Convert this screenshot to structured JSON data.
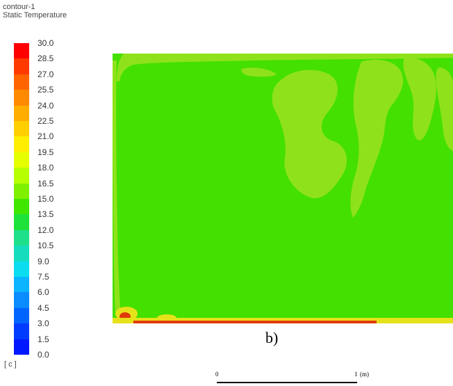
{
  "header": {
    "contour_name": "contour-1",
    "variable": "Static Temperature"
  },
  "legend": {
    "labels": [
      "30.0",
      "28.5",
      "27.0",
      "25.5",
      "24.0",
      "22.5",
      "21.0",
      "19.5",
      "18.0",
      "16.5",
      "15.0",
      "13.5",
      "12.0",
      "10.5",
      "9.0",
      "7.5",
      "6.0",
      "4.5",
      "3.0",
      "1.5",
      "0.0"
    ],
    "colors": [
      "#ff0000",
      "#ff3a00",
      "#ff6400",
      "#ff8a00",
      "#ffae00",
      "#ffcf00",
      "#ffee00",
      "#e6ff00",
      "#b6ff00",
      "#7ef000",
      "#3ee600",
      "#1ee23a",
      "#1ee08a",
      "#16dcbe",
      "#0cdcf0",
      "#0cb4ff",
      "#0a8cff",
      "#0064ff",
      "#003cff",
      "#0018ff"
    ],
    "unit": "[ c ]"
  },
  "plot": {
    "panel_label": "b)",
    "field_color": "#44e000",
    "lighter_color": "#8fe21a",
    "warm_color": "#e6e21a",
    "hot_color": "#e03a0a"
  },
  "scale_bar": {
    "start_label": "0",
    "end_label": "1",
    "unit": "(m)"
  }
}
